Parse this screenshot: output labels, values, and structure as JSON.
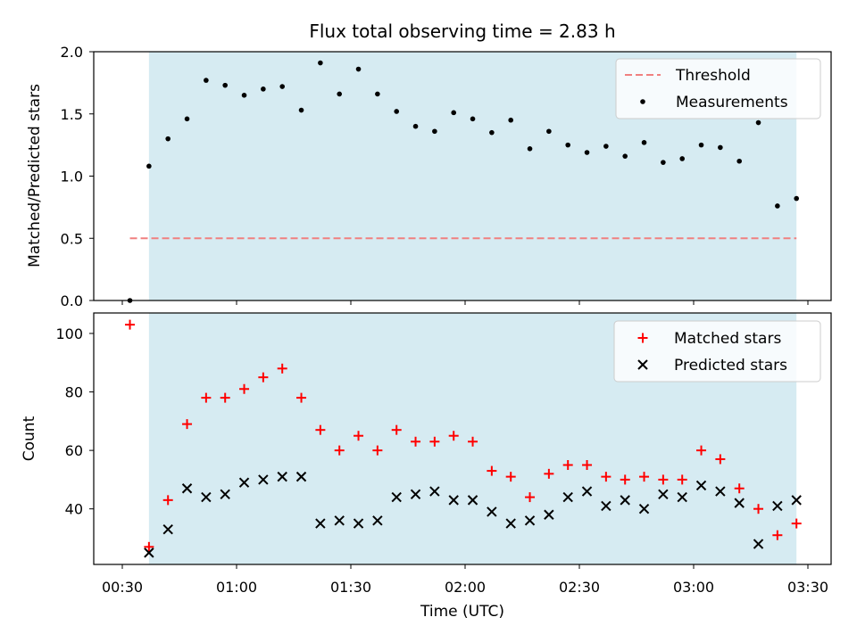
{
  "title": "Flux total observing time = 2.83 h",
  "colors": {
    "shade": "#add8e6",
    "threshold": "#f08080",
    "measurement": "#000000",
    "matched": "#ff0000",
    "predicted": "#000000"
  },
  "chart_data": [
    {
      "type": "scatter",
      "panel": "top",
      "ylabel": "Matched/Predicted stars",
      "ylim": [
        0,
        2.0
      ],
      "yticks": [
        "0.0",
        "0.5",
        "1.0",
        "1.5",
        "2.0"
      ],
      "shaded_span": [
        "00:37",
        "03:27"
      ],
      "legend_position": "upper-right",
      "threshold": {
        "name": "Threshold",
        "value": 0.5,
        "x_range": [
          "00:32",
          "03:27"
        ]
      },
      "series": [
        {
          "name": "Measurements",
          "x": [
            "00:32",
            "00:37",
            "00:42",
            "00:47",
            "00:52",
            "00:57",
            "01:02",
            "01:07",
            "01:12",
            "01:17",
            "01:22",
            "01:27",
            "01:32",
            "01:37",
            "01:42",
            "01:47",
            "01:52",
            "01:57",
            "02:02",
            "02:07",
            "02:12",
            "02:17",
            "02:22",
            "02:27",
            "02:32",
            "02:37",
            "02:42",
            "02:47",
            "02:52",
            "02:57",
            "03:02",
            "03:07",
            "03:12",
            "03:17",
            "03:22",
            "03:27"
          ],
          "values": [
            0.0,
            1.08,
            1.3,
            1.46,
            1.77,
            1.73,
            1.65,
            1.7,
            1.72,
            1.53,
            1.91,
            1.66,
            1.86,
            1.66,
            1.52,
            1.4,
            1.36,
            1.51,
            1.46,
            1.35,
            1.45,
            1.22,
            1.36,
            1.25,
            1.19,
            1.24,
            1.16,
            1.27,
            1.11,
            1.14,
            1.25,
            1.23,
            1.12,
            1.43,
            0.76,
            0.82
          ]
        }
      ]
    },
    {
      "type": "scatter",
      "panel": "bottom",
      "ylabel": "Count",
      "xlabel": "Time (UTC)",
      "ylim": [
        21,
        107
      ],
      "yticks": [
        "40",
        "60",
        "80",
        "100"
      ],
      "xticks": [
        "00:30",
        "01:00",
        "01:30",
        "02:00",
        "02:30",
        "03:00",
        "03:30"
      ],
      "shaded_span": [
        "00:37",
        "03:27"
      ],
      "legend_position": "upper-right",
      "series": [
        {
          "name": "Matched stars",
          "marker": "plus",
          "x": [
            "00:32",
            "00:37",
            "00:42",
            "00:47",
            "00:52",
            "00:57",
            "01:02",
            "01:07",
            "01:12",
            "01:17",
            "01:22",
            "01:27",
            "01:32",
            "01:37",
            "01:42",
            "01:47",
            "01:52",
            "01:57",
            "02:02",
            "02:07",
            "02:12",
            "02:17",
            "02:22",
            "02:27",
            "02:32",
            "02:37",
            "02:42",
            "02:47",
            "02:52",
            "02:57",
            "03:02",
            "03:07",
            "03:12",
            "03:17",
            "03:22",
            "03:27"
          ],
          "values": [
            103,
            27,
            43,
            69,
            78,
            78,
            81,
            85,
            88,
            78,
            67,
            60,
            65,
            60,
            67,
            63,
            63,
            65,
            63,
            53,
            51,
            44,
            52,
            55,
            55,
            51,
            50,
            51,
            50,
            50,
            60,
            57,
            47,
            40,
            31,
            35
          ]
        },
        {
          "name": "Predicted stars",
          "marker": "x",
          "x": [
            "00:37",
            "00:42",
            "00:47",
            "00:52",
            "00:57",
            "01:02",
            "01:07",
            "01:12",
            "01:17",
            "01:22",
            "01:27",
            "01:32",
            "01:37",
            "01:42",
            "01:47",
            "01:52",
            "01:57",
            "02:02",
            "02:07",
            "02:12",
            "02:17",
            "02:22",
            "02:27",
            "02:32",
            "02:37",
            "02:42",
            "02:47",
            "02:52",
            "02:57",
            "03:02",
            "03:07",
            "03:12",
            "03:17",
            "03:22",
            "03:27"
          ],
          "values": [
            25,
            33,
            47,
            44,
            45,
            49,
            50,
            51,
            51,
            35,
            36,
            35,
            36,
            44,
            45,
            46,
            43,
            43,
            39,
            35,
            36,
            38,
            44,
            46,
            41,
            43,
            40,
            45,
            44,
            48,
            46,
            42,
            28,
            41,
            43
          ]
        }
      ]
    }
  ]
}
